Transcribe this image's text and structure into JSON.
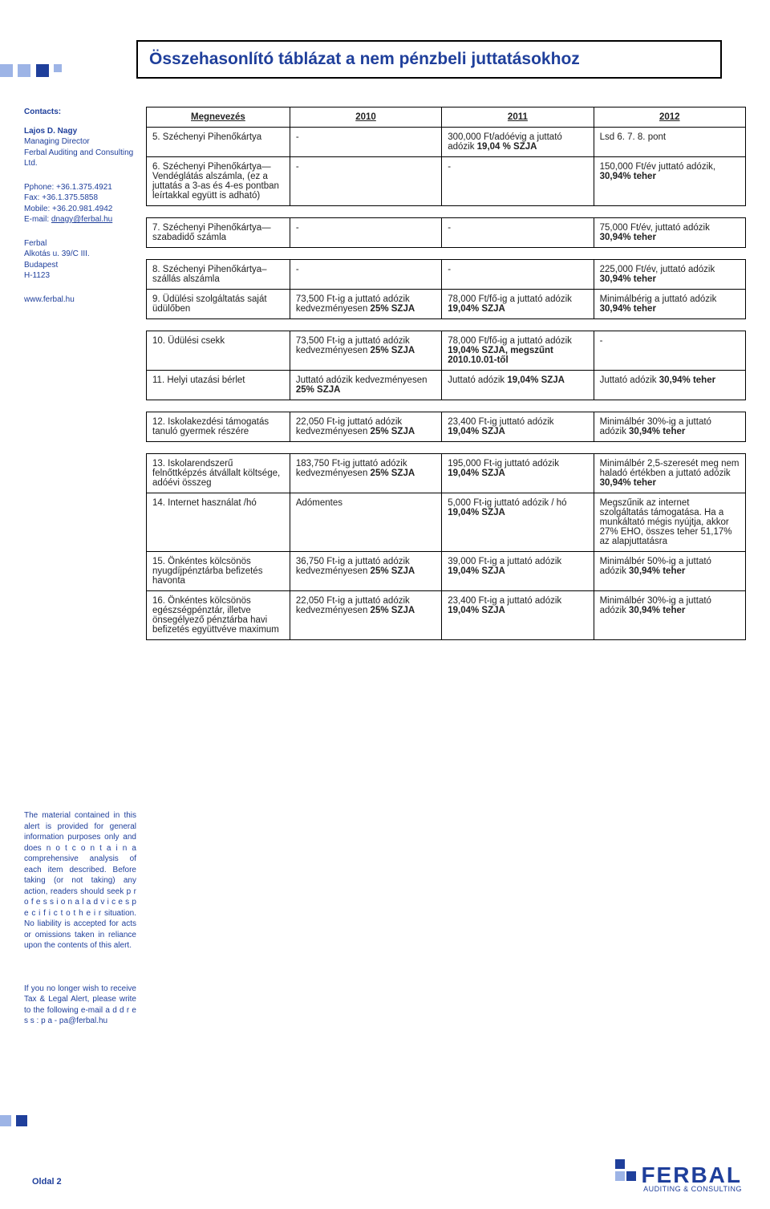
{
  "deco": {
    "color_light": "#9db4e6",
    "color_dark": "#1f3f9b"
  },
  "title": "Összehasonlító táblázat a nem pénzbeli juttatásokhoz",
  "sidebar": {
    "contacts_hdr": "Contacts:",
    "person_name": "Lajos D. Nagy",
    "person_role1": "Managing Director",
    "person_role2": "Ferbal Auditing and Consulting Ltd.",
    "phone": "Pphone: +36.1.375.4921",
    "fax": "Fax: +36.1.375.5858",
    "mobile": "Mobile: +36.20.981.4942",
    "email_lbl": "E-mail: ",
    "email": "dnagy@ferbal.hu",
    "addr1": "Ferbal",
    "addr2": "Alkotás u. 39/C III.",
    "addr3": "Budapest",
    "addr4": "H-1123",
    "web": "www.ferbal.hu",
    "legal": "The material contained in this alert is provided for general information purposes only and does n o t  c o n t a i n  a comprehensive analysis of each item described. Before taking (or not taking) any action, readers should seek p r o f e s s i o n a l  a d v i c e s p e c i f i c  t o  t h e i r situation. No liability is accepted for acts or omissions taken in reliance upon the contents of this alert.",
    "unsub_pre": "If you no longer wish to receive Tax & Legal Alert, please write to the following e-mail ",
    "unsub_addr_lbl": "a d d r e s s :  p a - pa@ferbal.hu"
  },
  "table_headers": {
    "name": "Megnevezés",
    "y2010": "2010",
    "y2011": "2011",
    "y2012": "2012"
  },
  "groups": [
    {
      "rows": [
        {
          "name": "5. Széchenyi Pihenőkártya",
          "c2010": "-",
          "c2011": "300,000 Ft/adóévig a juttató adózik <span class='b'>19,04 % SZJA</span>",
          "c2012": "Lsd 6. 7. 8. pont"
        },
        {
          "name": "6. Széchenyi Pihenőkártya— Vendéglátás alszámla, (ez a juttatás a 3-as és 4-es pontban leírtakkal együtt is adható)",
          "c2010": "-",
          "c2011": "-",
          "c2012": "150,000 Ft/év juttató adózik, <span class='b'>30,94% teher</span>"
        }
      ]
    },
    {
      "rows": [
        {
          "name": "7. Széchenyi Pihenőkártya— szabadidő számla",
          "c2010": "-",
          "c2011": "-",
          "c2012": "75,000 Ft/év, juttató adózik <span class='b'>30,94% teher</span>"
        }
      ]
    },
    {
      "rows": [
        {
          "name": "8. Széchenyi Pihenőkártya– szállás alszámla",
          "c2010": "-",
          "c2011": "-",
          "c2012": "225,000 Ft/év, juttató adózik <span class='b'>30,94% teher</span>"
        },
        {
          "name": "9. Üdülési szolgáltatás saját üdülőben",
          "c2010": "73,500 Ft-ig a juttató adózik kedvezményesen <span class='b'>25% SZJA</span>",
          "c2011": "78,000 Ft/fő-ig a juttató adózik <span class='b'>19,04% SZJA</span>",
          "c2012": "Minimálbérig a juttató adózik <span class='b'>30,94% teher</span>"
        }
      ]
    },
    {
      "rows": [
        {
          "name": "10. Üdülési csekk",
          "c2010": "73,500 Ft-ig a juttató adózik kedvezményesen <span class='b'>25% SZJA</span>",
          "c2011": "78,000 Ft/fő-ig a juttató adózik <span class='b'>19,04% SZJA, megszűnt 2010.10.01-től</span>",
          "c2012": "-"
        },
        {
          "name": "11. Helyi utazási bérlet",
          "c2010": "Juttató adózik kedvezményesen <span class='b'>25% SZJA</span>",
          "c2011": "Juttató adózik <span class='b'>19,04% SZJA</span>",
          "c2012": "Juttató adózik <span class='b'>30,94% teher</span>"
        }
      ]
    },
    {
      "rows": [
        {
          "name": "12. Iskolakezdési támogatás tanuló gyermek részére",
          "c2010": "22,050 Ft-ig juttató adózik kedvezményesen <span class='b'>25% SZJA</span>",
          "c2011": "23,400 Ft-ig juttató adózik <span class='b'>19,04% SZJA</span>",
          "c2012": "Minimálbér 30%-ig a juttató adózik <span class='b'>30,94% teher</span>"
        }
      ]
    },
    {
      "rows": [
        {
          "name": "13. Iskolarendszerű felnőttképzés átvállalt költsége, adóévi összeg",
          "c2010": "183,750 Ft-ig juttató adózik kedvezményesen <span class='b'>25% SZJA</span>",
          "c2011": "195,000 Ft-ig juttató adózik <span class='b'>19,04% SZJA</span>",
          "c2012": "Minimálbér 2,5-szeresét meg nem haladó értékben a juttató adózik <span class='b'>30,94% teher</span>"
        },
        {
          "name": "14. Internet használat /hó",
          "c2010": "Adómentes",
          "c2011": "5,000 Ft-ig juttató adózik / hó <span class='b'>19,04% SZJA</span>",
          "c2012": "Megszűnik az internet szolgáltatás támogatása. Ha a munkáltató mégis nyújtja, akkor 27% EHO, összes teher 51,17% az alapjuttatásra"
        },
        {
          "name": "15. Önkéntes kölcsönös nyugdíjpénztárba befizetés havonta",
          "c2010": "36,750 Ft-ig a juttató adózik kedvezményesen <span class='b'>25% SZJA</span>",
          "c2011": "39,000 Ft-ig a juttató adózik <span class='b'>19,04% SZJA</span>",
          "c2012": "Minimálbér 50%-ig a juttató adózik <span class='b'>30,94% teher</span>"
        },
        {
          "name": "16. Önkéntes kölcsönös egészségpénztár, illetve önsegélyező pénztárba havi befizetés együttvéve maximum",
          "c2010": "22,050 Ft-ig a juttató adózik kedvezményesen <span class='b'>25% SZJA</span>",
          "c2011": "23,400 Ft-ig a juttató adózik <span class='b'>19,04% SZJA</span>",
          "c2012": "Minimálbér 30%-ig a juttató adózik <span class='b'>30,94% teher</span>"
        }
      ]
    }
  ],
  "footer": "Oldal 2",
  "logo": {
    "main": "FERBAL",
    "sub": "AUDITING & CONSULTING"
  }
}
